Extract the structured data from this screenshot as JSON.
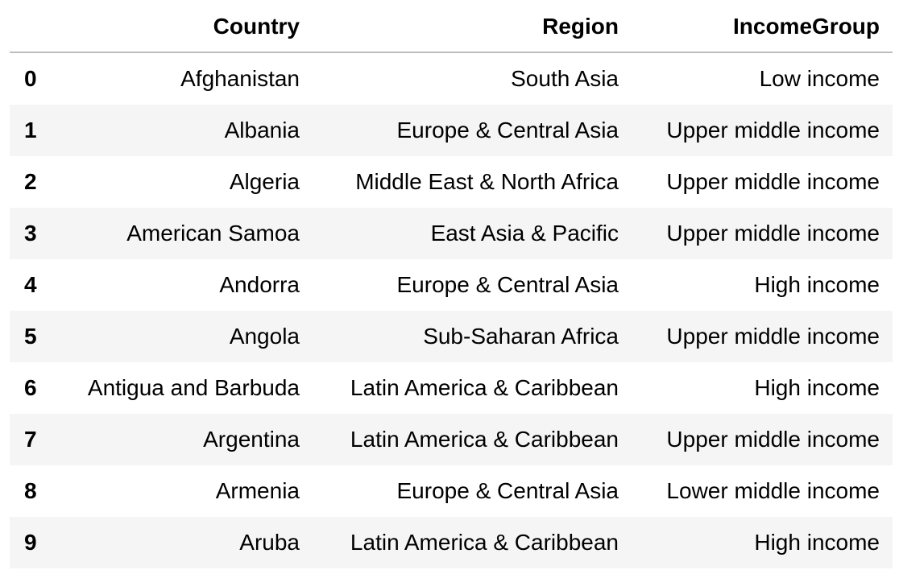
{
  "table": {
    "columns": [
      "Country",
      "Region",
      "IncomeGroup"
    ],
    "rows": [
      {
        "index": "0",
        "Country": "Afghanistan",
        "Region": "South Asia",
        "IncomeGroup": "Low income"
      },
      {
        "index": "1",
        "Country": "Albania",
        "Region": "Europe & Central Asia",
        "IncomeGroup": "Upper middle income"
      },
      {
        "index": "2",
        "Country": "Algeria",
        "Region": "Middle East & North Africa",
        "IncomeGroup": "Upper middle income"
      },
      {
        "index": "3",
        "Country": "American Samoa",
        "Region": "East Asia & Pacific",
        "IncomeGroup": "Upper middle income"
      },
      {
        "index": "4",
        "Country": "Andorra",
        "Region": "Europe & Central Asia",
        "IncomeGroup": "High income"
      },
      {
        "index": "5",
        "Country": "Angola",
        "Region": "Sub-Saharan Africa",
        "IncomeGroup": "Upper middle income"
      },
      {
        "index": "6",
        "Country": "Antigua and Barbuda",
        "Region": "Latin America & Caribbean",
        "IncomeGroup": "High income"
      },
      {
        "index": "7",
        "Country": "Argentina",
        "Region": "Latin America & Caribbean",
        "IncomeGroup": "Upper middle income"
      },
      {
        "index": "8",
        "Country": "Armenia",
        "Region": "Europe & Central Asia",
        "IncomeGroup": "Lower middle income"
      },
      {
        "index": "9",
        "Country": "Aruba",
        "Region": "Latin America & Caribbean",
        "IncomeGroup": "High income"
      }
    ]
  }
}
